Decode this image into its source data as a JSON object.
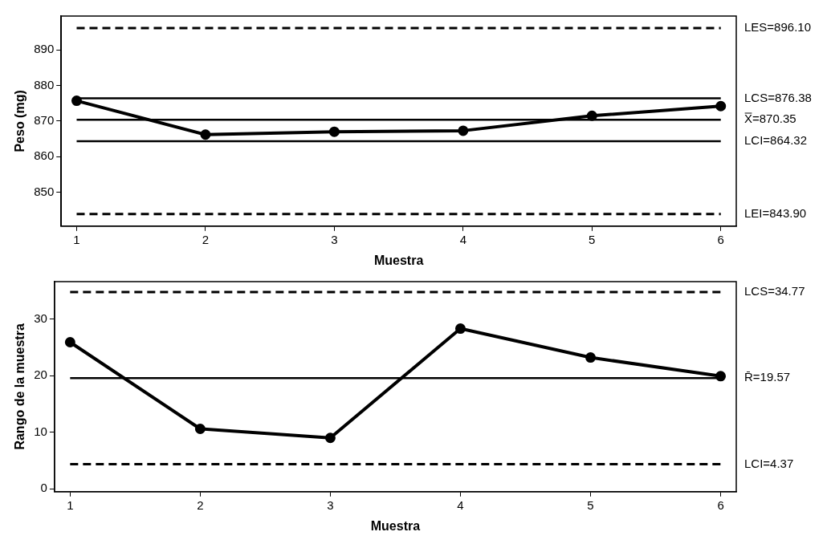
{
  "chart_data": [
    {
      "type": "line",
      "xlabel": "Muestra",
      "ylabel": "Peso (mg)",
      "x": [
        1,
        2,
        3,
        4,
        5,
        6
      ],
      "xlim": [
        0.88,
        6.12
      ],
      "xticks": [
        1,
        2,
        3,
        4,
        5,
        6
      ],
      "ylim": [
        840.5,
        899.5
      ],
      "yticks": [
        850,
        860,
        870,
        880,
        890
      ],
      "series": [
        {
          "color": "#000000",
          "values": [
            875.7,
            866.2,
            867.0,
            867.3,
            871.5,
            874.2
          ]
        }
      ],
      "ref_lines": [
        {
          "axis": "y",
          "value": 896.1,
          "label": "LES=896.10",
          "color": "#000000",
          "line_style": "dashed"
        },
        {
          "axis": "y",
          "value": 876.38,
          "label": "LCS=876.38",
          "color": "#000000",
          "line_style": "solid"
        },
        {
          "axis": "y",
          "value": 870.35,
          "label": "X̿=870.35",
          "color": "#000000",
          "line_style": "solid"
        },
        {
          "axis": "y",
          "value": 864.32,
          "label": "LCI=864.32",
          "color": "#000000",
          "line_style": "solid"
        },
        {
          "axis": "y",
          "value": 843.9,
          "label": "LEI=843.90",
          "color": "#000000",
          "line_style": "dashed"
        }
      ],
      "marker": "circle",
      "grid": false,
      "legend": false
    },
    {
      "type": "line",
      "xlabel": "Muestra",
      "ylabel": "Rango de la muestra",
      "x": [
        1,
        2,
        3,
        4,
        5,
        6
      ],
      "xlim": [
        0.88,
        6.12
      ],
      "xticks": [
        1,
        2,
        3,
        4,
        5,
        6
      ],
      "ylim": [
        -0.5,
        36.6
      ],
      "yticks": [
        0,
        10,
        20,
        30
      ],
      "series": [
        {
          "color": "#000000",
          "values": [
            25.9,
            10.6,
            9.0,
            28.3,
            23.2,
            19.9
          ]
        }
      ],
      "ref_lines": [
        {
          "axis": "y",
          "value": 34.77,
          "label": "LCS=34.77",
          "color": "#000000",
          "line_style": "dashed"
        },
        {
          "axis": "y",
          "value": 19.57,
          "label": "R̄=19.57",
          "color": "#000000",
          "line_style": "solid"
        },
        {
          "axis": "y",
          "value": 4.37,
          "label": "LCI=4.37",
          "color": "#000000",
          "line_style": "dashed"
        }
      ],
      "marker": "circle",
      "grid": false,
      "legend": false
    }
  ]
}
